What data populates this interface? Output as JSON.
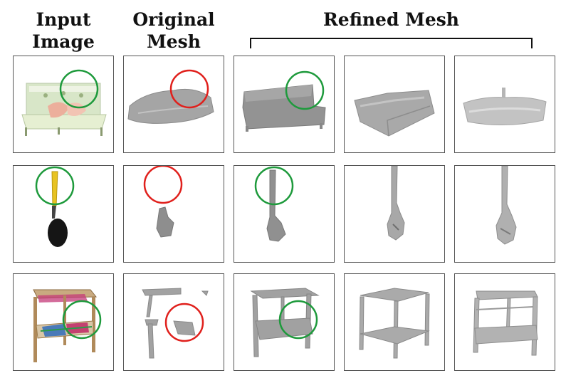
{
  "headers": {
    "input_line1": "Input",
    "input_line2": "Image",
    "original_line1": "Original",
    "original_line2": "Mesh",
    "refined": "Refined Mesh"
  },
  "rows": [
    {
      "object": "bed",
      "columns": [
        "input-image",
        "original-mesh",
        "refined-mesh-1",
        "refined-mesh-2",
        "refined-mesh-3"
      ]
    },
    {
      "object": "lamp",
      "columns": [
        "input-image",
        "original-mesh",
        "refined-mesh-1",
        "refined-mesh-2",
        "refined-mesh-3"
      ]
    },
    {
      "object": "table",
      "columns": [
        "input-image",
        "original-mesh",
        "refined-mesh-1",
        "refined-mesh-2",
        "refined-mesh-3"
      ]
    }
  ],
  "colors": {
    "good_circle": "#1e9a3c",
    "bad_circle": "#e0201c",
    "mesh_gray": "#9a9a9a",
    "border": "#555555"
  }
}
